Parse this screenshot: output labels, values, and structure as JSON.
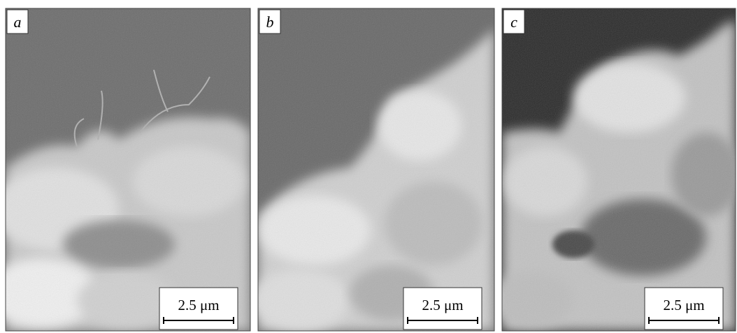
{
  "panels": [
    {
      "label": "a",
      "scale_bar": "2.5 μm"
    },
    {
      "label": "b",
      "scale_bar": "2.5 μm"
    },
    {
      "label": "c",
      "scale_bar": "2.5 μm"
    }
  ]
}
